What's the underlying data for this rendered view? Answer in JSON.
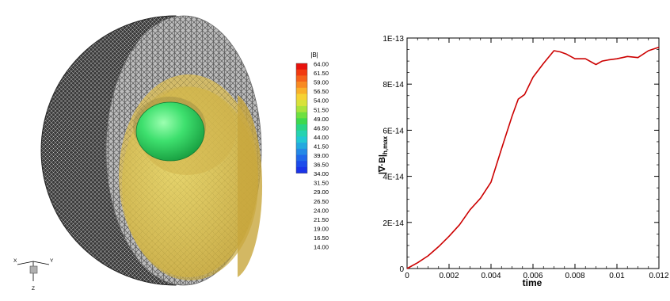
{
  "legend": {
    "title": "|B|",
    "levels": [
      "64.00",
      "61.50",
      "59.00",
      "56.50",
      "54.00",
      "51.50",
      "49.00",
      "46.50",
      "44.00",
      "41.50",
      "39.00",
      "36.50",
      "34.00",
      "31.50",
      "29.00",
      "26.50",
      "24.00",
      "21.50",
      "19.00",
      "16.50",
      "14.00"
    ],
    "colors": [
      "#e8120c",
      "#f13a10",
      "#f5621a",
      "#f88a22",
      "#f9b02a",
      "#f6d233",
      "#d8e23a",
      "#a9e33c",
      "#6ee040",
      "#3ed94e",
      "#2ad585",
      "#25d3b0",
      "#22c8d3",
      "#23a9df",
      "#2489e6",
      "#2068ea",
      "#1c4ceb",
      "#1a34e9"
    ]
  },
  "axis_triad": {
    "x": "X",
    "y": "Y",
    "z": "Z"
  },
  "chart_data": {
    "type": "line",
    "xlabel": "time",
    "ylabel": "|∇·B|h,max",
    "xlim": [
      0,
      0.012
    ],
    "ylim": [
      0,
      1e-13
    ],
    "x_ticks": [
      "0",
      "0.002",
      "0.004",
      "0.006",
      "0.008",
      "0.01",
      "0.012"
    ],
    "y_ticks": [
      "0",
      "2E-14",
      "4E-14",
      "6E-14",
      "8E-14",
      "1E-13"
    ],
    "series": [
      {
        "color": "#cc0000",
        "x": [
          0,
          0.0005,
          0.001,
          0.0015,
          0.002,
          0.0025,
          0.003,
          0.0035,
          0.004,
          0.0045,
          0.005,
          0.0053,
          0.0056,
          0.006,
          0.0065,
          0.007,
          0.0073,
          0.0076,
          0.008,
          0.0085,
          0.009,
          0.0093,
          0.0096,
          0.01,
          0.0105,
          0.011,
          0.0115,
          0.012
        ],
        "y": [
          0,
          2.5e-15,
          5.5e-15,
          9.5e-15,
          1.4e-14,
          1.9e-14,
          2.55e-14,
          3.05e-14,
          3.75e-14,
          5.2e-14,
          6.6e-14,
          7.35e-14,
          7.55e-14,
          8.3e-14,
          8.9e-14,
          9.45e-14,
          9.4e-14,
          9.3e-14,
          9.1e-14,
          9.1e-14,
          8.85e-14,
          9e-14,
          9.05e-14,
          9.1e-14,
          9.2e-14,
          9.15e-14,
          9.45e-14,
          9.6e-14
        ]
      }
    ]
  }
}
